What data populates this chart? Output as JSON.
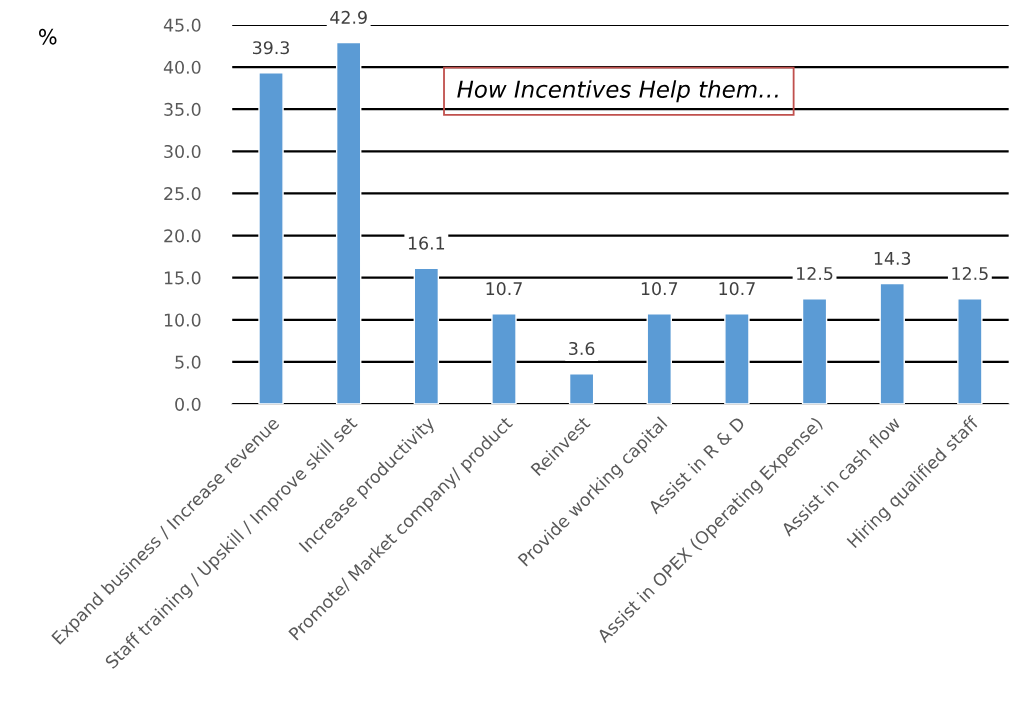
{
  "chart_data": {
    "type": "bar",
    "title": "How Incentives Help them…",
    "ylabel": "%",
    "categories": [
      "Expand business / Increase revenue",
      "Staff training / Upskill / Improve skill set",
      "Increase productivity",
      "Promote/ Market company/ product",
      "Reinvest",
      "Provide working capital",
      "Assist in R & D",
      "Assist in OPEX (Operating Expense)",
      "Assist in cash flow",
      "Hiring qualified staff"
    ],
    "values": [
      39.3,
      42.9,
      16.1,
      10.7,
      3.6,
      10.7,
      10.7,
      12.5,
      14.3,
      12.5
    ],
    "color": "#5b9bd5",
    "ylim": [
      0,
      45
    ],
    "yticks": [
      {
        "value": 0,
        "label": "0.0"
      },
      {
        "value": 5,
        "label": "5.0"
      },
      {
        "value": 10,
        "label": "10.0"
      },
      {
        "value": 15,
        "label": "15.0"
      },
      {
        "value": 20,
        "label": "20.0"
      },
      {
        "value": 25,
        "label": "25.0"
      },
      {
        "value": 30,
        "label": "30.0"
      },
      {
        "value": 35,
        "label": "35.0"
      },
      {
        "value": 40,
        "label": "40.0"
      },
      {
        "value": 45,
        "label": "45.0"
      }
    ],
    "grid": "y",
    "data_labels": true
  }
}
